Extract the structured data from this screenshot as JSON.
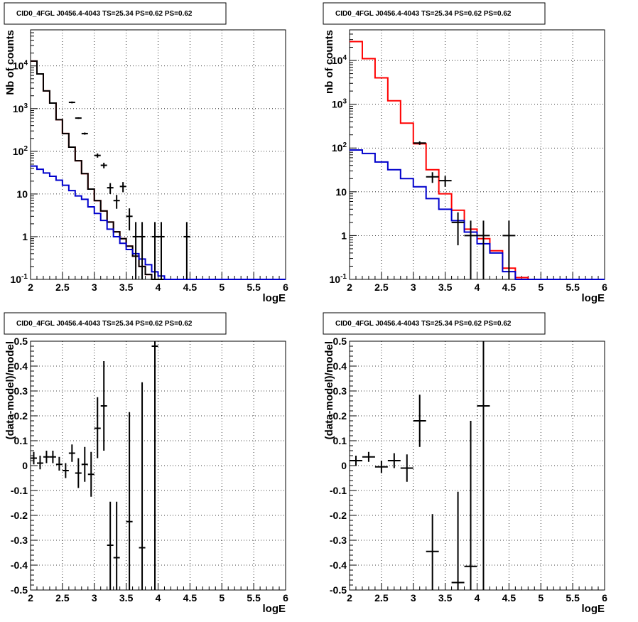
{
  "window": {
    "background": "#ffffff"
  },
  "chart_data": [
    {
      "type": "line",
      "title": "CID0_4FGL J0456.4-4043 TS=25.34 PS=0.62 PS=0.62",
      "xlabel": "logE",
      "ylabel": "Nb of counts",
      "xlim": [
        2,
        6
      ],
      "ylim": [
        0.1,
        70000
      ],
      "yscale": "log",
      "grid": true,
      "x_ticks": [
        2,
        2.5,
        3,
        3.5,
        4,
        4.5,
        5,
        5.5,
        6
      ],
      "x_tick_labels": [
        "2",
        "2.5",
        "3",
        "3.5",
        "4",
        "4.5",
        "5",
        "5.5",
        "6"
      ],
      "y_ticks": [
        0.1,
        1,
        10,
        100,
        1000,
        10000
      ],
      "y_tick_labels": [
        "10^-1",
        "1",
        "10",
        "10^2",
        "10^3",
        "10^4"
      ],
      "bin_edges": [
        2.0,
        2.1,
        2.2,
        2.3,
        2.4,
        2.5,
        2.6,
        2.7,
        2.8,
        2.9,
        3.0,
        3.1,
        3.2,
        3.3,
        3.4,
        3.5,
        3.6,
        3.7,
        3.8,
        3.9,
        4.0,
        4.1,
        4.2,
        4.3,
        4.4,
        4.5,
        4.6,
        4.7,
        4.8,
        4.9,
        5.0,
        5.1,
        5.2,
        5.3,
        5.4,
        5.5,
        5.6,
        5.7,
        5.8,
        5.9,
        6.0
      ],
      "series": [
        {
          "color": "#ff0000",
          "style": "step",
          "values": [
            13000,
            6500,
            2600,
            1350,
            550,
            260,
            125,
            60,
            30,
            13,
            7,
            4,
            2.2,
            1.3,
            0.9,
            0.6,
            0.35,
            0.2,
            0.13,
            0.1,
            0.1,
            0.1,
            0.1,
            0.1,
            0.1,
            0.1,
            0.1,
            0.1,
            0.1,
            0.1,
            0.1,
            0.1,
            0.1,
            0.1,
            0.1,
            0.1,
            0.1,
            0.1,
            0.1,
            0.1
          ]
        },
        {
          "color": "#000000",
          "style": "step",
          "values": [
            13000,
            6500,
            2600,
            1350,
            550,
            260,
            125,
            60,
            30,
            13,
            7,
            4,
            2.2,
            1.3,
            0.9,
            0.6,
            0.35,
            0.2,
            0.13,
            0.1,
            0.1,
            0.1,
            0.1,
            0.1,
            0.1,
            0.1,
            0.1,
            0.1,
            0.1,
            0.1,
            0.1,
            0.1,
            0.1,
            0.1,
            0.1,
            0.1,
            0.1,
            0.1,
            0.1,
            0.1
          ]
        },
        {
          "color": "#0000cc",
          "style": "step",
          "values": [
            45,
            38,
            31,
            26,
            21,
            16,
            12,
            9,
            7.5,
            5,
            3.5,
            2.4,
            1.5,
            1.0,
            0.7,
            0.5,
            0.4,
            0.3,
            0.22,
            0.15,
            0.12,
            0.1,
            0.1,
            0.1,
            0.1,
            0.1,
            0.1,
            0.1,
            0.1,
            0.1,
            0.1,
            0.1,
            0.1,
            0.1,
            0.1,
            0.1,
            0.1,
            0.1,
            0.1,
            0.1
          ]
        }
      ],
      "data_points": {
        "color": "#000000",
        "points": [
          {
            "x": 2.65,
            "y": 1400,
            "xerr": 0.05,
            "ylo": 1330,
            "yhi": 1470
          },
          {
            "x": 2.75,
            "y": 600,
            "xerr": 0.05,
            "ylo": 575,
            "yhi": 625
          },
          {
            "x": 2.85,
            "y": 260,
            "xerr": 0.05,
            "ylo": 245,
            "yhi": 275
          },
          {
            "x": 3.05,
            "y": 80,
            "xerr": 0.05,
            "ylo": 71,
            "yhi": 89
          },
          {
            "x": 3.15,
            "y": 47,
            "xerr": 0.05,
            "ylo": 40,
            "yhi": 54
          },
          {
            "x": 3.25,
            "y": 14,
            "xerr": 0.05,
            "ylo": 10,
            "yhi": 18
          },
          {
            "x": 3.35,
            "y": 7,
            "xerr": 0.05,
            "ylo": 4.5,
            "yhi": 9.5
          },
          {
            "x": 3.45,
            "y": 15,
            "xerr": 0.05,
            "ylo": 11,
            "yhi": 19
          },
          {
            "x": 3.55,
            "y": 3,
            "xerr": 0.05,
            "ylo": 1.4,
            "yhi": 4.6
          },
          {
            "x": 3.65,
            "y": 1,
            "xerr": 0.05,
            "ylo": 0.1,
            "yhi": 2.2
          },
          {
            "x": 3.75,
            "y": 1,
            "xerr": 0.05,
            "ylo": 0.1,
            "yhi": 2.2
          },
          {
            "x": 3.95,
            "y": 1,
            "xerr": 0.05,
            "ylo": 0.1,
            "yhi": 2.2
          },
          {
            "x": 4.05,
            "y": 1,
            "xerr": 0.05,
            "ylo": 0.1,
            "yhi": 2.2
          },
          {
            "x": 4.45,
            "y": 1,
            "xerr": 0.05,
            "ylo": 0.1,
            "yhi": 2.2
          }
        ]
      }
    },
    {
      "type": "line",
      "title": "CID0_4FGL J0456.4-4043 TS=25.34 PS=0.62 PS=0.62",
      "xlabel": "logE",
      "ylabel": "nb of counts",
      "xlim": [
        2,
        6
      ],
      "ylim": [
        0.1,
        50000
      ],
      "yscale": "log",
      "grid": true,
      "x_ticks": [
        2,
        2.5,
        3,
        3.5,
        4,
        4.5,
        5,
        5.5,
        6
      ],
      "x_tick_labels": [
        "2",
        "2.5",
        "3",
        "3.5",
        "4",
        "4.5",
        "5",
        "5.5",
        "6"
      ],
      "y_ticks": [
        0.1,
        1,
        10,
        100,
        1000,
        10000
      ],
      "y_tick_labels": [
        "10^-1",
        "1",
        "10",
        "10^2",
        "10^3",
        "10^4"
      ],
      "bin_edges": [
        2.0,
        2.2,
        2.4,
        2.6,
        2.8,
        3.0,
        3.2,
        3.4,
        3.6,
        3.8,
        4.0,
        4.2,
        4.4,
        4.6,
        4.8,
        5.0,
        5.2,
        5.4,
        5.6,
        5.8,
        6.0
      ],
      "series": [
        {
          "color": "#ff0000",
          "style": "step",
          "values": [
            27000,
            11000,
            4000,
            1200,
            370,
            125,
            32,
            9,
            3.8,
            1.4,
            0.85,
            0.45,
            0.18,
            0.11,
            0.1,
            0.1,
            0.1,
            0.1,
            0.1,
            0.1
          ]
        },
        {
          "color": "#0000cc",
          "style": "step",
          "values": [
            90,
            75,
            48,
            32,
            20,
            13,
            7,
            4,
            2.2,
            1.2,
            0.65,
            0.4,
            0.15,
            0.1,
            0.1,
            0.1,
            0.1,
            0.1,
            0.1,
            0.1
          ]
        }
      ],
      "data_points": {
        "color": "#000000",
        "points": [
          {
            "x": 3.1,
            "y": 130,
            "xerr": 0.1,
            "ylo": 118,
            "yhi": 142
          },
          {
            "x": 3.3,
            "y": 22,
            "xerr": 0.1,
            "ylo": 16,
            "yhi": 28
          },
          {
            "x": 3.5,
            "y": 18,
            "xerr": 0.1,
            "ylo": 13,
            "yhi": 23
          },
          {
            "x": 3.7,
            "y": 2,
            "xerr": 0.1,
            "ylo": 0.6,
            "yhi": 3.4
          },
          {
            "x": 3.9,
            "y": 1,
            "xerr": 0.1,
            "ylo": 0.1,
            "yhi": 2.2
          },
          {
            "x": 4.1,
            "y": 1,
            "xerr": 0.1,
            "ylo": 0.1,
            "yhi": 2.2
          },
          {
            "x": 4.5,
            "y": 1,
            "xerr": 0.1,
            "ylo": 0.1,
            "yhi": 2.2
          }
        ]
      }
    },
    {
      "type": "scatter",
      "title": "CID0_4FGL J0456.4-4043 TS=25.34 PS=0.62 PS=0.62",
      "xlabel": "logE",
      "ylabel": "(data-model)/model",
      "xlim": [
        2,
        6
      ],
      "ylim": [
        -0.5,
        0.5
      ],
      "yscale": "linear",
      "grid": true,
      "x_ticks": [
        2,
        2.5,
        3,
        3.5,
        4,
        4.5,
        5,
        5.5,
        6
      ],
      "x_tick_labels": [
        "2",
        "2.5",
        "3",
        "3.5",
        "4",
        "4.5",
        "5",
        "5.5",
        "6"
      ],
      "y_ticks": [
        -0.5,
        -0.4,
        -0.3,
        -0.2,
        -0.1,
        0,
        0.1,
        0.2,
        0.3,
        0.4,
        0.5
      ],
      "y_tick_labels": [
        "-0.5",
        "-0.4",
        "-0.3",
        "-0.2",
        "-0.1",
        "0",
        "0.1",
        "0.2",
        "0.3",
        "0.4",
        "0.5"
      ],
      "data_points": {
        "color": "#000000",
        "points": [
          {
            "x": 2.05,
            "y": 0.03,
            "xerr": 0.05,
            "ylo": 0.005,
            "yhi": 0.055
          },
          {
            "x": 2.15,
            "y": 0.01,
            "xerr": 0.05,
            "ylo": -0.015,
            "yhi": 0.04
          },
          {
            "x": 2.25,
            "y": 0.035,
            "xerr": 0.05,
            "ylo": 0.01,
            "yhi": 0.06
          },
          {
            "x": 2.35,
            "y": 0.035,
            "xerr": 0.05,
            "ylo": 0.01,
            "yhi": 0.06
          },
          {
            "x": 2.45,
            "y": 0.005,
            "xerr": 0.05,
            "ylo": -0.02,
            "yhi": 0.035
          },
          {
            "x": 2.55,
            "y": -0.02,
            "xerr": 0.05,
            "ylo": -0.05,
            "yhi": 0.01
          },
          {
            "x": 2.65,
            "y": 0.05,
            "xerr": 0.05,
            "ylo": 0.015,
            "yhi": 0.085
          },
          {
            "x": 2.75,
            "y": -0.03,
            "xerr": 0.05,
            "ylo": -0.09,
            "yhi": 0.03
          },
          {
            "x": 2.85,
            "y": 0.005,
            "xerr": 0.05,
            "ylo": -0.065,
            "yhi": 0.075
          },
          {
            "x": 2.95,
            "y": -0.035,
            "xerr": 0.05,
            "ylo": -0.125,
            "yhi": 0.055
          },
          {
            "x": 3.05,
            "y": 0.15,
            "xerr": 0.05,
            "ylo": 0.03,
            "yhi": 0.275
          },
          {
            "x": 3.15,
            "y": 0.24,
            "xerr": 0.05,
            "ylo": 0.06,
            "yhi": 0.42
          },
          {
            "x": 3.25,
            "y": -0.32,
            "xerr": 0.05,
            "ylo": -0.5,
            "yhi": -0.145
          },
          {
            "x": 3.35,
            "y": -0.37,
            "xerr": 0.05,
            "ylo": -0.5,
            "yhi": -0.145
          },
          {
            "x": 3.55,
            "y": -0.225,
            "xerr": 0.05,
            "ylo": -0.5,
            "yhi": 0.215
          },
          {
            "x": 3.75,
            "y": -0.33,
            "xerr": 0.05,
            "ylo": -0.5,
            "yhi": 0.335
          },
          {
            "x": 3.95,
            "y": 0.48,
            "xerr": 0.05,
            "ylo": -0.5,
            "yhi": 0.5
          }
        ]
      }
    },
    {
      "type": "scatter",
      "title": "CID0_4FGL J0456.4-4043 TS=25.34 PS=0.62 PS=0.62",
      "xlabel": "logE",
      "ylabel": "(data-model)/model",
      "xlim": [
        2,
        6
      ],
      "ylim": [
        -0.5,
        0.5
      ],
      "yscale": "linear",
      "grid": true,
      "x_ticks": [
        2,
        2.5,
        3,
        3.5,
        4,
        4.5,
        5,
        5.5,
        6
      ],
      "x_tick_labels": [
        "2",
        "2.5",
        "3",
        "3.5",
        "4",
        "4.5",
        "5",
        "5.5",
        "6"
      ],
      "y_ticks": [
        -0.5,
        -0.4,
        -0.3,
        -0.2,
        -0.1,
        0,
        0.1,
        0.2,
        0.3,
        0.4,
        0.5
      ],
      "y_tick_labels": [
        "-0.5",
        "-0.4",
        "-0.3",
        "-0.2",
        "-0.1",
        "0",
        "0.1",
        "0.2",
        "0.3",
        "0.4",
        "0.5"
      ],
      "data_points": {
        "color": "#000000",
        "points": [
          {
            "x": 2.1,
            "y": 0.02,
            "xerr": 0.1,
            "ylo": 0.0,
            "yhi": 0.04
          },
          {
            "x": 2.3,
            "y": 0.035,
            "xerr": 0.1,
            "ylo": 0.015,
            "yhi": 0.055
          },
          {
            "x": 2.5,
            "y": -0.005,
            "xerr": 0.1,
            "ylo": -0.03,
            "yhi": 0.02
          },
          {
            "x": 2.7,
            "y": 0.02,
            "xerr": 0.1,
            "ylo": -0.01,
            "yhi": 0.05
          },
          {
            "x": 2.9,
            "y": -0.01,
            "xerr": 0.1,
            "ylo": -0.065,
            "yhi": 0.045
          },
          {
            "x": 3.1,
            "y": 0.18,
            "xerr": 0.1,
            "ylo": 0.075,
            "yhi": 0.285
          },
          {
            "x": 3.3,
            "y": -0.345,
            "xerr": 0.1,
            "ylo": -0.5,
            "yhi": -0.195
          },
          {
            "x": 3.7,
            "y": -0.47,
            "xerr": 0.1,
            "ylo": -0.5,
            "yhi": -0.105
          },
          {
            "x": 3.9,
            "y": -0.405,
            "xerr": 0.1,
            "ylo": -0.5,
            "yhi": 0.18
          },
          {
            "x": 4.1,
            "y": 0.24,
            "xerr": 0.1,
            "ylo": -0.5,
            "yhi": 0.5
          }
        ]
      }
    }
  ]
}
